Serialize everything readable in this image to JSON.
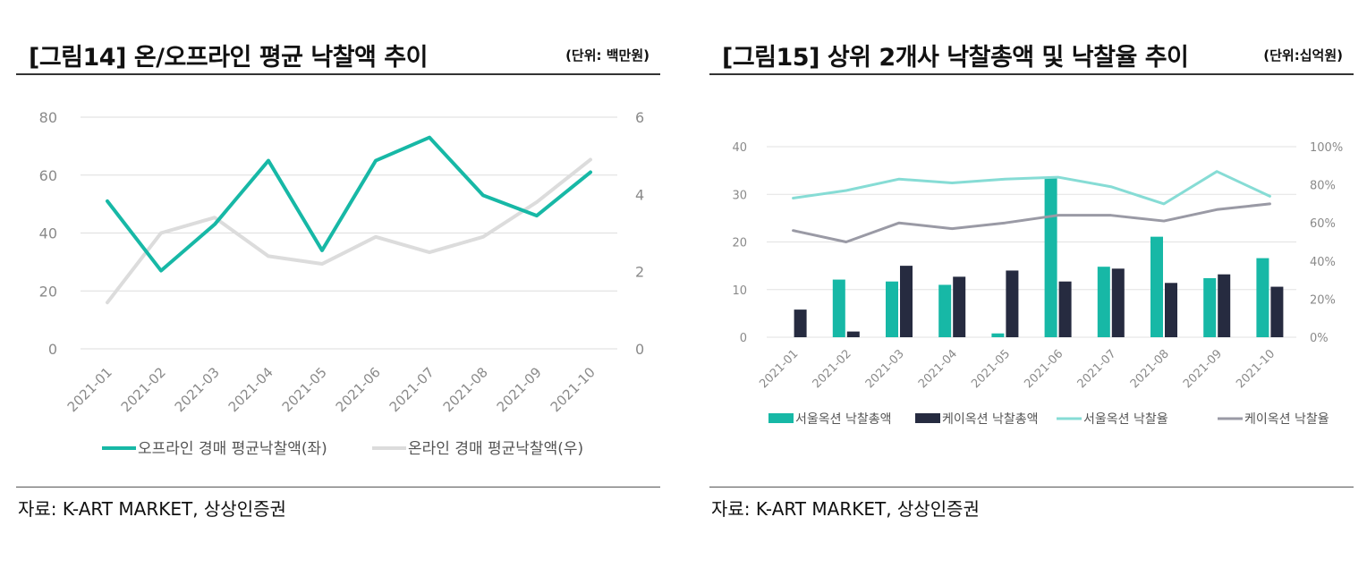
{
  "charts": [
    {
      "title": "[그림14] 온/오프라인 평균 낙찰액 추이",
      "unit": "(단위: 백만원)",
      "source": "자료: K-ART MARKET, 상상인증권"
    },
    {
      "title": "[그림15] 상위 2개사 낙찰총액 및 낙찰율 추이",
      "unit": "(단위:십억원)",
      "source": "자료: K-ART MARKET, 상상인증권"
    }
  ],
  "chart_data": [
    {
      "type": "line",
      "title": "[그림14] 온/오프라인 평균 낙찰액 추이",
      "categories": [
        "2021-01",
        "2021-02",
        "2021-03",
        "2021-04",
        "2021-05",
        "2021-06",
        "2021-07",
        "2021-08",
        "2021-09",
        "2021-10"
      ],
      "y_left": {
        "min": 0,
        "max": 80,
        "ticks": [
          "0",
          "20",
          "40",
          "60",
          "80"
        ]
      },
      "y_right": {
        "min": 0,
        "max": 6,
        "ticks": [
          "0",
          "2",
          "4",
          "6"
        ]
      },
      "series": [
        {
          "name": "오프라인 경매 평균낙찰액(좌)",
          "axis": "left",
          "color": "#17b8a6",
          "values": [
            51,
            27,
            43,
            65,
            34,
            65,
            73,
            53,
            46,
            61
          ]
        },
        {
          "name": "온라인 경매 평균낙찰액(우)",
          "axis": "right",
          "color": "#dcdcdc",
          "values": [
            1.2,
            3.0,
            3.4,
            2.4,
            2.2,
            2.9,
            2.5,
            2.9,
            3.8,
            4.9
          ]
        }
      ],
      "grid": true,
      "legend": "bottom"
    },
    {
      "type": "bar",
      "title": "[그림15] 상위 2개사 낙찰총액 및 낙찰율 추이",
      "categories": [
        "2021-01",
        "2021-02",
        "2021-03",
        "2021-04",
        "2021-05",
        "2021-06",
        "2021-07",
        "2021-08",
        "2021-09",
        "2021-10"
      ],
      "y_left": {
        "min": 0,
        "max": 40,
        "ticks": [
          "0",
          "10",
          "20",
          "30",
          "40"
        ]
      },
      "y_right": {
        "min": 0,
        "max": 100,
        "ticks": [
          "0%",
          "20%",
          "40%",
          "60%",
          "80%",
          "100%"
        ]
      },
      "series": [
        {
          "name": "서울옥션 낙찰총액",
          "kind": "bar",
          "axis": "left",
          "color": "#17b8a6",
          "values": [
            0,
            12.1,
            11.7,
            11.0,
            0.8,
            33.6,
            14.8,
            21.1,
            12.4,
            16.6
          ]
        },
        {
          "name": "케이옥션 낙찰총액",
          "kind": "bar",
          "axis": "left",
          "color": "#262b40",
          "values": [
            5.8,
            1.2,
            15.0,
            12.7,
            14.0,
            11.7,
            14.4,
            11.4,
            13.2,
            10.6
          ]
        },
        {
          "name": "서울옥션 낙찰율",
          "kind": "line",
          "axis": "right",
          "color": "#86dcd5",
          "values": [
            73,
            77,
            83,
            81,
            83,
            84,
            79,
            70,
            87,
            74
          ]
        },
        {
          "name": "케이옥션 낙찰율",
          "kind": "line",
          "axis": "right",
          "color": "#9a9aa5",
          "values": [
            56,
            50,
            60,
            57,
            60,
            64,
            64,
            61,
            67,
            70
          ]
        }
      ],
      "grid": true,
      "legend": "bottom"
    }
  ]
}
